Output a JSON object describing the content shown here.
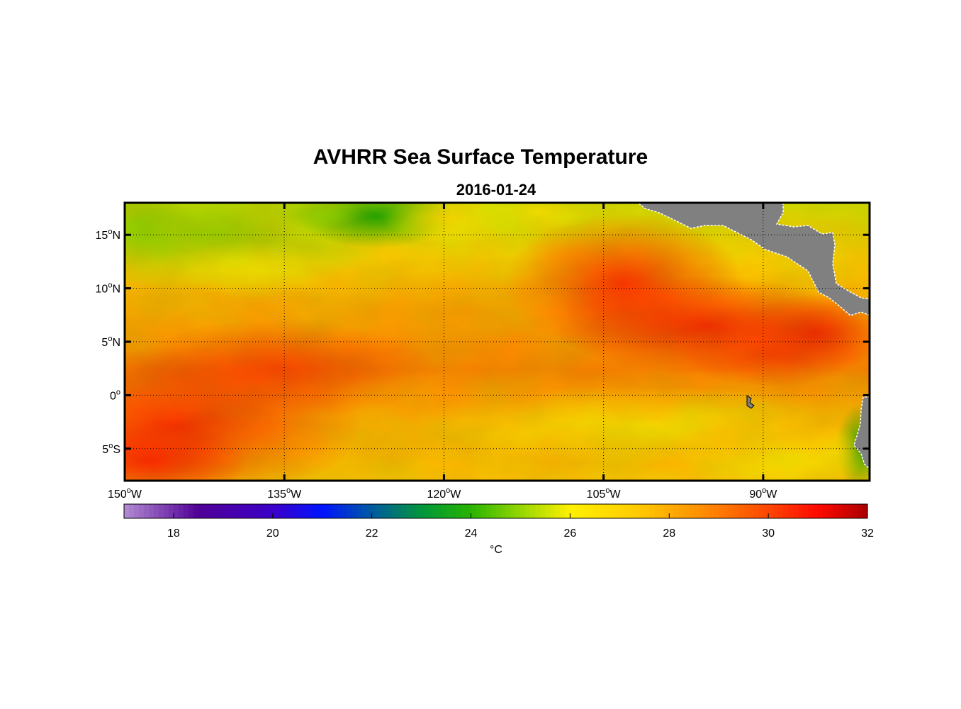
{
  "title": "AVHRR Sea Surface Temperature",
  "date": "2016-01-24",
  "colorbar": {
    "ticks": [
      18,
      20,
      22,
      24,
      26,
      28,
      30,
      32
    ],
    "min": 17,
    "max": 32,
    "unit": "°C"
  },
  "map": {
    "lon_range": [
      -150,
      -80
    ],
    "lat_range": [
      -8,
      18
    ],
    "lon_ticks": [
      {
        "value": -150,
        "label": "150",
        "hemi": "W"
      },
      {
        "value": -135,
        "label": "135",
        "hemi": "W"
      },
      {
        "value": -120,
        "label": "120",
        "hemi": "W"
      },
      {
        "value": -105,
        "label": "105",
        "hemi": "W"
      },
      {
        "value": -90,
        "label": "90",
        "hemi": "W"
      }
    ],
    "lat_ticks": [
      {
        "value": 15,
        "label": "15",
        "hemi": "N"
      },
      {
        "value": 10,
        "label": "10",
        "hemi": "N"
      },
      {
        "value": 5,
        "label": "5",
        "hemi": "N"
      },
      {
        "value": 0,
        "label": "0",
        "hemi": ""
      },
      {
        "value": -5,
        "label": "5",
        "hemi": "S"
      }
    ],
    "grid": "dotted",
    "land_color": "#808080"
  }
}
